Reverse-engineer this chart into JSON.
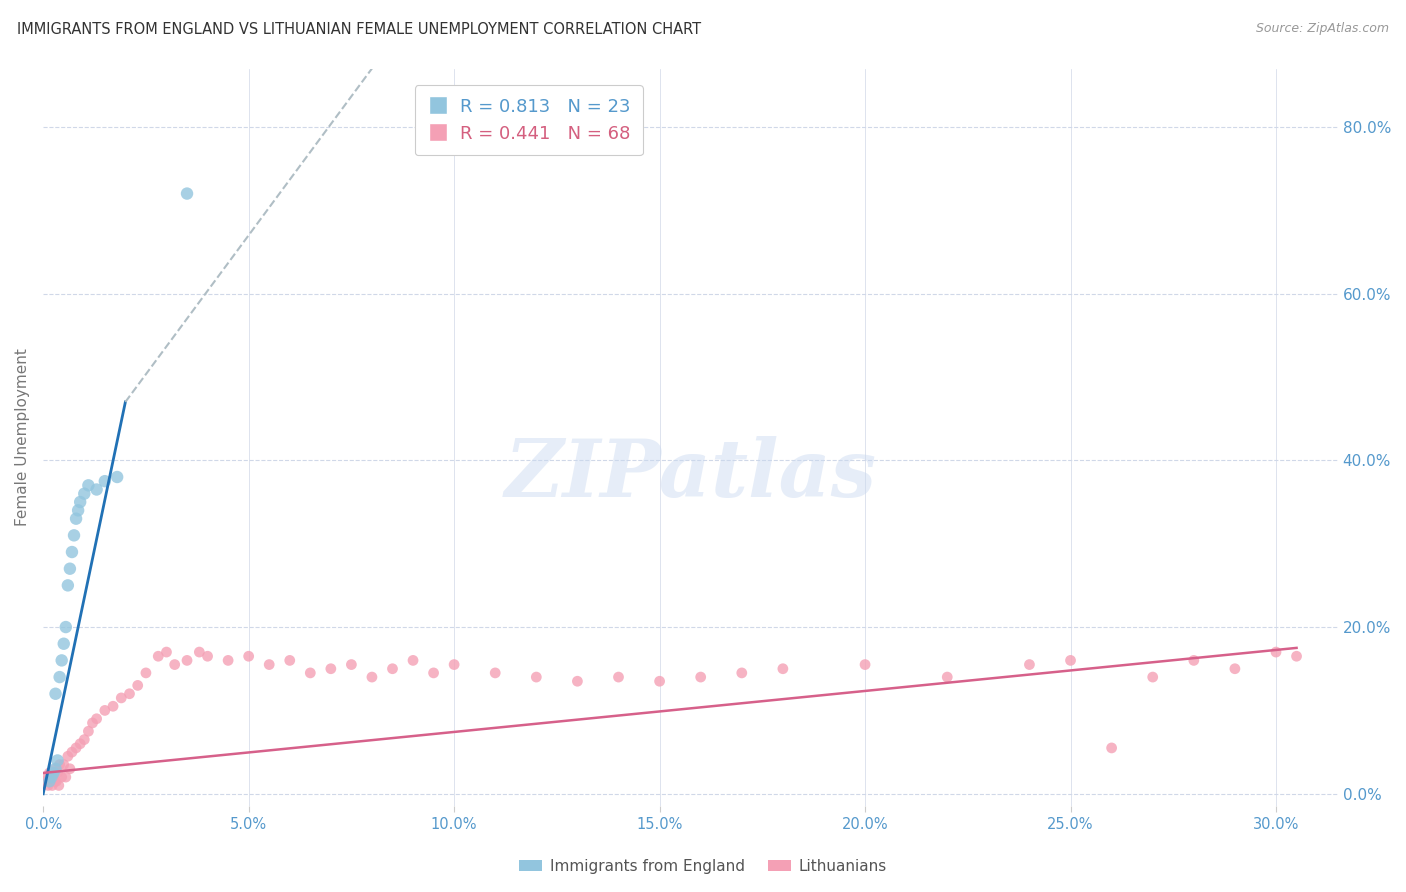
{
  "title": "IMMIGRANTS FROM ENGLAND VS LITHUANIAN FEMALE UNEMPLOYMENT CORRELATION CHART",
  "source": "Source: ZipAtlas.com",
  "xlabel_ticks": [
    0.0,
    5.0,
    10.0,
    15.0,
    20.0,
    25.0,
    30.0
  ],
  "ylabel_ticks": [
    0.0,
    20.0,
    40.0,
    60.0,
    80.0
  ],
  "xlim": [
    0.0,
    31.5
  ],
  "ylim": [
    -1.5,
    87.0
  ],
  "blue_label": "Immigrants from England",
  "pink_label": "Lithuanians",
  "blue_R": "0.813",
  "blue_N": "23",
  "pink_R": "0.441",
  "pink_N": "68",
  "blue_color": "#92c5de",
  "pink_color": "#f4a0b5",
  "blue_edge_color": "#92c5de",
  "pink_edge_color": "#f4a0b5",
  "blue_line_color": "#2171b5",
  "pink_line_color": "#d6608a",
  "bg_color": "#ffffff",
  "grid_color": "#d0d8e8",
  "title_color": "#333333",
  "axis_label_color": "#777777",
  "tick_color": "#5599cc",
  "legend_R_color_blue": "#5599cc",
  "legend_R_color_pink": "#d45f7f",
  "blue_scatter_x": [
    0.15,
    0.2,
    0.25,
    0.3,
    0.3,
    0.35,
    0.4,
    0.45,
    0.5,
    0.55,
    0.6,
    0.65,
    0.7,
    0.75,
    0.8,
    0.85,
    0.9,
    1.0,
    1.1,
    1.3,
    1.5,
    1.8,
    3.5
  ],
  "blue_scatter_y": [
    1.5,
    2.0,
    2.5,
    3.0,
    12.0,
    4.0,
    14.0,
    16.0,
    18.0,
    20.0,
    25.0,
    27.0,
    29.0,
    31.0,
    33.0,
    34.0,
    35.0,
    36.0,
    37.0,
    36.5,
    37.5,
    38.0,
    72.0
  ],
  "pink_scatter_x": [
    0.05,
    0.1,
    0.12,
    0.15,
    0.18,
    0.2,
    0.22,
    0.25,
    0.28,
    0.3,
    0.32,
    0.35,
    0.38,
    0.4,
    0.45,
    0.5,
    0.55,
    0.6,
    0.65,
    0.7,
    0.8,
    0.9,
    1.0,
    1.1,
    1.2,
    1.3,
    1.5,
    1.7,
    1.9,
    2.1,
    2.3,
    2.5,
    2.8,
    3.0,
    3.2,
    3.5,
    3.8,
    4.0,
    4.5,
    5.0,
    5.5,
    6.0,
    6.5,
    7.0,
    7.5,
    8.0,
    8.5,
    9.0,
    9.5,
    10.0,
    11.0,
    12.0,
    13.0,
    14.0,
    15.0,
    16.0,
    17.0,
    18.0,
    20.0,
    22.0,
    24.0,
    25.0,
    26.0,
    27.0,
    28.0,
    29.0,
    30.0,
    30.5
  ],
  "pink_scatter_y": [
    1.5,
    2.0,
    1.0,
    2.5,
    1.5,
    2.0,
    1.0,
    2.5,
    1.5,
    3.0,
    1.5,
    2.5,
    1.0,
    3.5,
    2.0,
    3.5,
    2.0,
    4.5,
    3.0,
    5.0,
    5.5,
    6.0,
    6.5,
    7.5,
    8.5,
    9.0,
    10.0,
    10.5,
    11.5,
    12.0,
    13.0,
    14.5,
    16.5,
    17.0,
    15.5,
    16.0,
    17.0,
    16.5,
    16.0,
    16.5,
    15.5,
    16.0,
    14.5,
    15.0,
    15.5,
    14.0,
    15.0,
    16.0,
    14.5,
    15.5,
    14.5,
    14.0,
    13.5,
    14.0,
    13.5,
    14.0,
    14.5,
    15.0,
    15.5,
    14.0,
    15.5,
    16.0,
    5.5,
    14.0,
    16.0,
    15.0,
    17.0,
    16.5
  ],
  "blue_regr_x0": 0.0,
  "blue_regr_y0": 0.0,
  "blue_regr_x1": 2.0,
  "blue_regr_y1": 47.0,
  "blue_dash_x0": 2.0,
  "blue_dash_y0": 47.0,
  "blue_dash_x1": 8.0,
  "blue_dash_y1": 87.0,
  "pink_regr_x0": 0.0,
  "pink_regr_y0": 2.5,
  "pink_regr_x1": 30.5,
  "pink_regr_y1": 17.5,
  "marker_size_blue": 80,
  "marker_size_pink": 60,
  "watermark_text": "ZIPatlas",
  "watermark_color": "#c8d8f0",
  "watermark_alpha": 0.45
}
